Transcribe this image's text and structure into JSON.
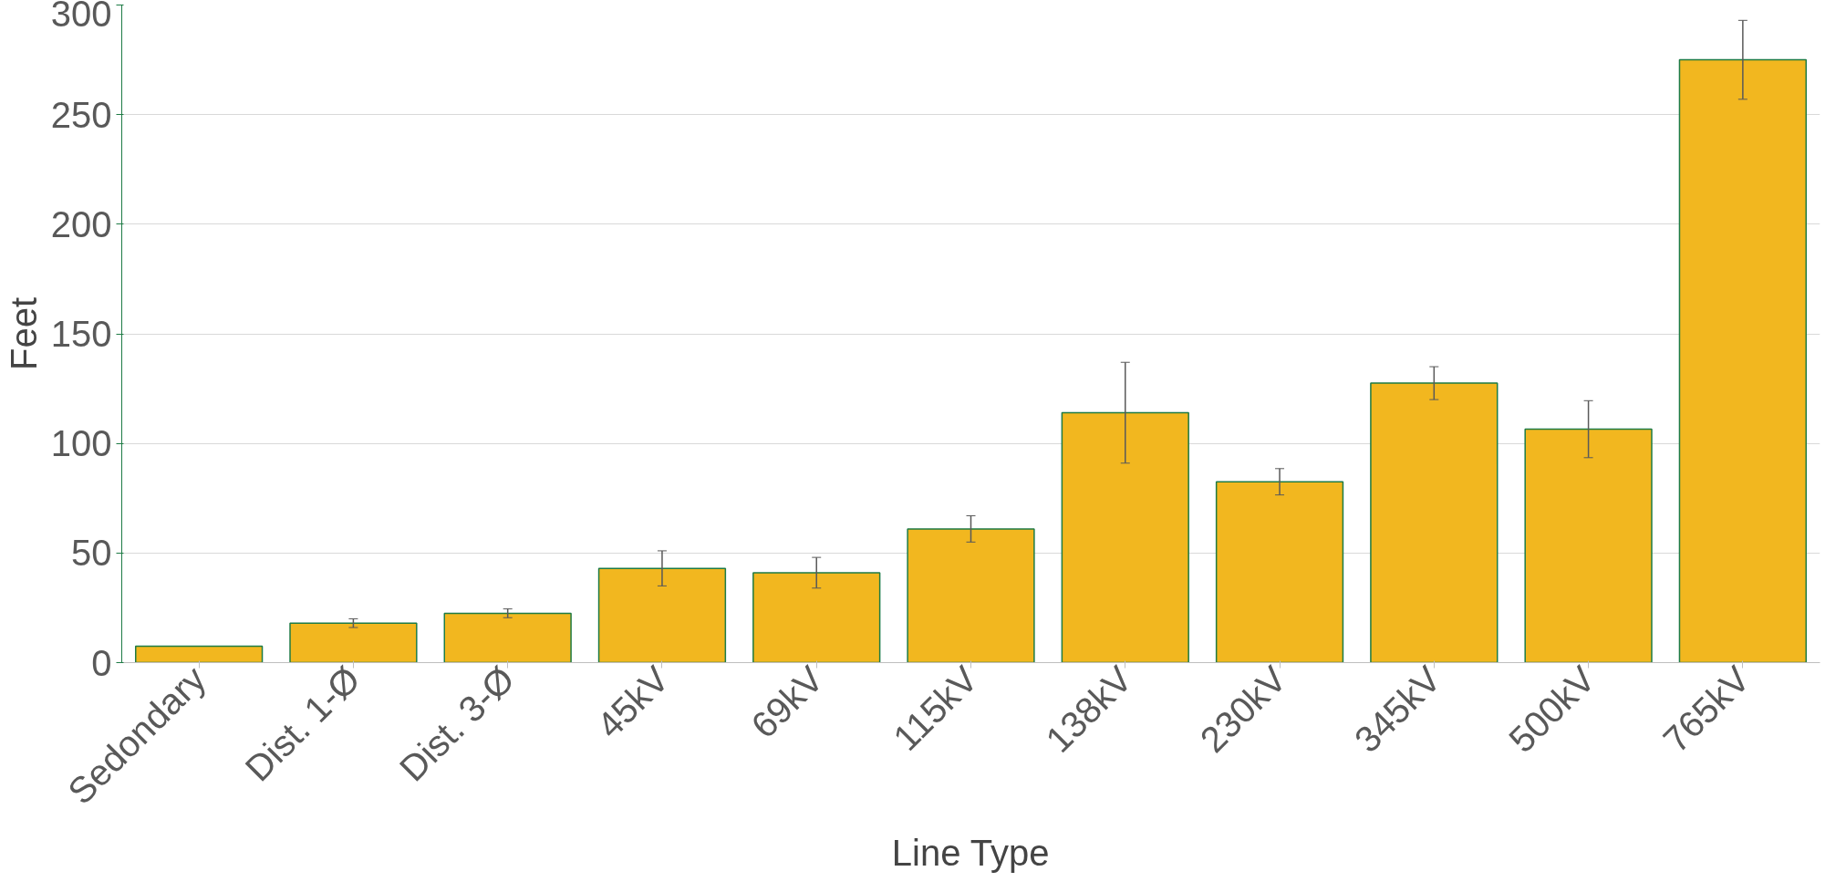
{
  "chart_data": {
    "type": "bar",
    "xlabel": "Line Type",
    "ylabel": "Feet",
    "categories": [
      "Sedondary",
      "Dist. 1-Ø",
      "Dist. 3-Ø",
      "45kV",
      "69kV",
      "115kV",
      "138kV",
      "230kV",
      "345kV",
      "500kV",
      "765kV"
    ],
    "values": [
      7.5,
      18,
      22.5,
      43,
      41,
      61,
      114,
      82.5,
      127.5,
      106.5,
      275
    ],
    "errors": [
      null,
      2,
      2,
      8,
      7,
      6,
      23,
      6,
      7.5,
      13,
      18
    ],
    "color": "#f2b71f",
    "ylim": [
      0,
      300
    ],
    "yticks": [
      0,
      50,
      100,
      150,
      200,
      250,
      300
    ],
    "grid": "y"
  }
}
